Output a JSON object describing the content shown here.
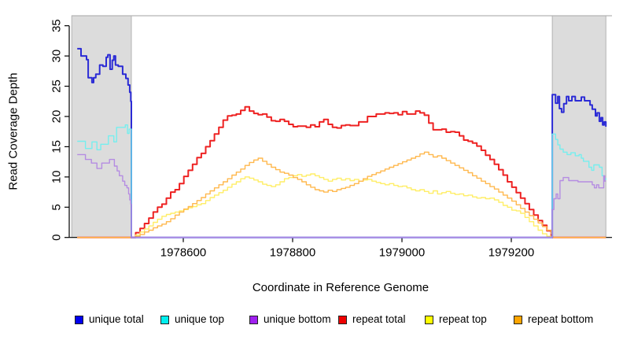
{
  "chart_data": {
    "type": "line",
    "line_style": "step",
    "title": "",
    "xlabel": "Coordinate in Reference Genome",
    "ylabel": "Read Coverage Depth",
    "xlim": [
      1978391,
      1979385
    ],
    "ylim": [
      0,
      35
    ],
    "xticks": [
      1978600,
      1978800,
      1979000,
      1979200
    ],
    "yticks": [
      0,
      5,
      10,
      15,
      20,
      25,
      30,
      35
    ],
    "grid": false,
    "legend_position": "bottom",
    "shade_color": "#dcdcdc",
    "shade_border_color": "#b3b3b3",
    "axis_color": "#000000",
    "shaded_regions": [
      [
        1978396,
        1978505
      ],
      [
        1979275,
        1979373
      ]
    ],
    "series": [
      {
        "label": "unique total",
        "color": "#2b2bd5",
        "legend_color": "#0000ee",
        "width": 2,
        "z": 4,
        "segments": [
          {
            "pts": [
              [
                1978406,
                31.2
              ],
              [
                1978413,
                30
              ],
              [
                1978423,
                29.4
              ],
              [
                1978426,
                26.4
              ],
              [
                1978433,
                25.6
              ],
              [
                1978436,
                26.4
              ],
              [
                1978440,
                27
              ],
              [
                1978447,
                28.5
              ],
              [
                1978453,
                28.3
              ],
              [
                1978459,
                29.8
              ],
              [
                1978462,
                30.2
              ],
              [
                1978466,
                27.8
              ],
              [
                1978470,
                29.3
              ],
              [
                1978473,
                30
              ],
              [
                1978476,
                28.5
              ],
              [
                1978481,
                28.3
              ],
              [
                1978489,
                27
              ],
              [
                1978495,
                26.3
              ],
              [
                1978499,
                25.2
              ],
              [
                1978502,
                24
              ],
              [
                1978504,
                22.5
              ],
              [
                1978505,
                0
              ]
            ]
          },
          {
            "pts": [
              [
                1979275,
                23.6
              ],
              [
                1979281,
                22.2
              ],
              [
                1979285,
                23.3
              ],
              [
                1979288,
                21.3
              ],
              [
                1979292,
                20.7
              ],
              [
                1979296,
                22.1
              ],
              [
                1979301,
                23.3
              ],
              [
                1979305,
                22.6
              ],
              [
                1979311,
                23.3
              ],
              [
                1979317,
                22.6
              ],
              [
                1979328,
                23.2
              ],
              [
                1979334,
                22.6
              ],
              [
                1979344,
                21.9
              ],
              [
                1979348,
                21.2
              ],
              [
                1979354,
                20.1
              ],
              [
                1979357,
                20.6
              ],
              [
                1979361,
                19.2
              ],
              [
                1979364,
                19.8
              ],
              [
                1979367,
                18.6
              ],
              [
                1979370,
                19.1
              ],
              [
                1979373,
                18.3
              ]
            ]
          }
        ]
      },
      {
        "label": "unique top",
        "color": "#76eeee",
        "legend_color": "#00eeee",
        "width": 1.4,
        "z": 5,
        "segments": [
          {
            "pts": [
              [
                1978406,
                15.9
              ],
              [
                1978421,
                14.7
              ],
              [
                1978433,
                15.8
              ],
              [
                1978442,
                14.5
              ],
              [
                1978449,
                15.4
              ],
              [
                1978463,
                16.8
              ],
              [
                1978473,
                15.8
              ],
              [
                1978478,
                18.2
              ],
              [
                1978494,
                18.6
              ],
              [
                1978498,
                17.2
              ],
              [
                1978501,
                17.9
              ],
              [
                1978505,
                0
              ]
            ]
          },
          {
            "pts": [
              [
                1979275,
                17.1
              ],
              [
                1979281,
                16.2
              ],
              [
                1979285,
                15.3
              ],
              [
                1979289,
                14.6
              ],
              [
                1979295,
                14.1
              ],
              [
                1979302,
                13.7
              ],
              [
                1979309,
                14
              ],
              [
                1979317,
                13.5
              ],
              [
                1979324,
                13.7
              ],
              [
                1979328,
                13.1
              ],
              [
                1979332,
                12.6
              ],
              [
                1979338,
                12.6
              ],
              [
                1979342,
                11.6
              ],
              [
                1979347,
                11.1
              ],
              [
                1979351,
                12
              ],
              [
                1979361,
                11.6
              ],
              [
                1979366,
                10.2
              ],
              [
                1979369,
                9.6
              ],
              [
                1979373,
                9.8
              ]
            ]
          }
        ]
      },
      {
        "label": "unique bottom",
        "color": "#b58ce2",
        "legend_color": "#a020f0",
        "width": 1.4,
        "z": 6,
        "segments": [
          {
            "pts": [
              [
                1978406,
                13.7
              ],
              [
                1978421,
                12.9
              ],
              [
                1978432,
                12.3
              ],
              [
                1978442,
                11.4
              ],
              [
                1978451,
                12.3
              ],
              [
                1978465,
                12.9
              ],
              [
                1978474,
                11.8
              ],
              [
                1978479,
                11
              ],
              [
                1978483,
                10.2
              ],
              [
                1978489,
                9.3
              ],
              [
                1978493,
                8.6
              ],
              [
                1978497,
                8.2
              ],
              [
                1978500,
                7.2
              ],
              [
                1978502,
                6.2
              ],
              [
                1978504,
                5.5
              ],
              [
                1978505,
                0
              ]
            ]
          },
          {
            "pts": [
              [
                1979275,
                4.6
              ],
              [
                1979278,
                6.4
              ],
              [
                1979282,
                7.2
              ],
              [
                1979285,
                6.4
              ],
              [
                1979289,
                9.4
              ],
              [
                1979295,
                9.9
              ],
              [
                1979305,
                9.4
              ],
              [
                1979322,
                9.2
              ],
              [
                1979348,
                8.7
              ],
              [
                1979352,
                8.2
              ],
              [
                1979356,
                8.7
              ],
              [
                1979360,
                8.2
              ],
              [
                1979366,
                8.2
              ],
              [
                1979369,
                10.2
              ],
              [
                1979371,
                9.3
              ],
              [
                1979373,
                9.3
              ]
            ]
          }
        ]
      },
      {
        "label": "repeat total",
        "color": "#ee2222",
        "legend_color": "#ee0000",
        "width": 2,
        "z": 1,
        "segments": [
          {
            "pts": [
              [
                1978406,
                0
              ]
            ]
          },
          {
            "x0": 1978505,
            "dx": 8,
            "v": [
              0,
              0.8,
              1.5,
              2.3,
              3.2,
              4.2,
              5,
              5.5,
              6.5,
              7.5,
              7.9,
              8.9,
              10.1,
              11.1,
              12.1,
              13.2,
              13.9,
              15,
              16,
              17.1,
              18.2,
              19.4,
              20.1,
              20.2,
              20.4,
              21,
              21.6,
              20.9,
              20.5,
              20.3,
              20.4,
              19.9,
              19.3,
              19.2,
              19.5,
              19.2,
              18.7,
              18.3,
              18.4,
              18.4,
              18.2,
              18.6,
              18.3,
              19.1,
              19.5,
              18.7,
              18.2,
              18.1,
              18.5,
              18.6,
              18.5,
              18.5,
              19.1,
              19.1,
              20,
              20,
              20.4,
              20.4,
              20.6,
              20.5,
              20.6,
              20.3,
              20.8,
              20.4,
              20.4,
              20.9,
              20.6,
              20.2,
              18.9,
              17.8,
              17.8,
              17.9,
              17.4,
              17.5,
              17.4,
              16.8,
              16.1,
              15.9,
              15.6,
              15.1,
              14.4,
              13.6,
              12.9,
              12.1,
              11.2,
              10.3,
              9.2,
              8.3,
              7.4,
              6.5,
              5.6,
              4.6,
              3.7,
              2.8,
              2,
              1.1,
              0.2
            ]
          },
          {
            "pts": [
              [
                1979275,
                0
              ],
              [
                1979373,
                0
              ]
            ]
          }
        ]
      },
      {
        "label": "repeat top",
        "color": "#ffee66",
        "legend_color": "#ffff00",
        "width": 1.4,
        "z": 2,
        "segments": [
          {
            "pts": [
              [
                1978406,
                0
              ]
            ]
          },
          {
            "x0": 1978505,
            "dx": 8,
            "v": [
              0,
              0.4,
              0.9,
              1.4,
              1.9,
              2.5,
              3,
              3.5,
              3.8,
              4,
              4.2,
              4.4,
              4.6,
              4.9,
              5.1,
              5.4,
              5.6,
              6.1,
              6.6,
              7,
              7.4,
              7.8,
              8.3,
              8.8,
              9.2,
              9.7,
              10,
              9.8,
              9.5,
              9.2,
              8.8,
              8.6,
              8.4,
              8.7,
              9.2,
              9.7,
              9.9,
              10.2,
              10.4,
              10.1,
              10.3,
              10.5,
              10.2,
              9.9,
              9.6,
              9.3,
              9.6,
              9.8,
              9.5,
              9.7,
              9.4,
              9.6,
              9.3,
              9.5,
              9.6,
              9.3,
              9.1,
              8.9,
              8.7,
              8.9,
              8.6,
              8.4,
              8.5,
              8.2,
              7.9,
              7.7,
              7.9,
              7.6,
              7.3,
              7.7,
              7.2,
              7.4,
              7.6,
              7.3,
              7.1,
              7.2,
              6.9,
              7,
              6.7,
              6.5,
              6.6,
              6.4,
              6.5,
              6.2,
              5.8,
              5.3,
              5,
              4.5,
              4.4,
              4,
              3.3,
              2.6,
              1.9,
              1.2,
              0.6,
              0.2,
              0
            ]
          },
          {
            "pts": [
              [
                1979275,
                0
              ],
              [
                1979373,
                0
              ]
            ]
          }
        ]
      },
      {
        "label": "repeat bottom",
        "color": "#ffb84d",
        "legend_color": "#ffa500",
        "width": 1.4,
        "z": 3,
        "segments": [
          {
            "pts": [
              [
                1978406,
                0
              ]
            ]
          },
          {
            "x0": 1978505,
            "dx": 8,
            "v": [
              0,
              0.2,
              0.5,
              0.9,
              1.2,
              1.6,
              1.9,
              2.2,
              2.6,
              3.1,
              3.7,
              4.2,
              4.7,
              5.1,
              5.6,
              6.1,
              6.6,
              7.2,
              7.7,
              8.2,
              8.7,
              9.2,
              9.7,
              10.3,
              10.8,
              11.3,
              11.9,
              12.4,
              12.8,
              13.1,
              12.6,
              12.1,
              11.6,
              11.2,
              10.8,
              10.6,
              10.3,
              9.9,
              9.6,
              9.2,
              8.7,
              8.3,
              7.9,
              7.7,
              7.5,
              7.8,
              7.6,
              7.9,
              8.1,
              8.3,
              8.6,
              8.9,
              9.3,
              9.7,
              10.1,
              10.4,
              10.7,
              11,
              11.3,
              11.6,
              11.9,
              12.2,
              12.5,
              12.8,
              13.1,
              13.4,
              13.8,
              14.1,
              13.7,
              13.3,
              13.5,
              13.1,
              12.7,
              12.3,
              11.9,
              11.5,
              11.1,
              10.7,
              10.2,
              9.8,
              9.3,
              8.9,
              8.4,
              8,
              7.5,
              7,
              6.5,
              6,
              5.4,
              4.8,
              4.2,
              3.6,
              3,
              2.4,
              1.8,
              1.2,
              0.6
            ]
          },
          {
            "pts": [
              [
                1979275,
                0
              ],
              [
                1979373,
                0
              ]
            ]
          }
        ]
      }
    ]
  }
}
